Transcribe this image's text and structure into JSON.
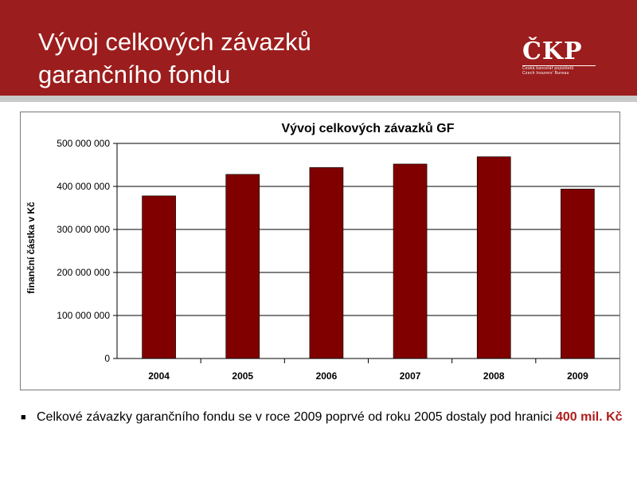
{
  "slide": {
    "title_line1": "Vývoj celkových závazků",
    "title_line2": "garančního fondu"
  },
  "logo": {
    "name": "ČKP",
    "sub_line1": "Česká kancelář pojistitelů",
    "sub_line2": "Czech Insurers' Bureau"
  },
  "bullet": {
    "text_main": "Celkové závazky garančního fondu se v roce 2009 poprvé od roku 2005 dostaly pod hranici ",
    "text_highlight": "400 mil. Kč"
  },
  "colors": {
    "header": "#9c1d1d",
    "bar": "#800000",
    "highlight": "#b01c1c"
  },
  "chart_data": {
    "type": "bar",
    "title": "Vývoj celkových závazků GF",
    "ylabel": "finanční částka v Kč",
    "xlabel": "",
    "categories": [
      "2004",
      "2005",
      "2006",
      "2007",
      "2008",
      "2009"
    ],
    "values": [
      378000000,
      428000000,
      444000000,
      452000000,
      469000000,
      394000000
    ],
    "ylim": [
      0,
      500000000
    ],
    "yticks": [
      0,
      100000000,
      200000000,
      300000000,
      400000000,
      500000000
    ],
    "ytick_labels": [
      "0",
      "100 000 000",
      "200 000 000",
      "300 000 000",
      "400 000 000",
      "500 000 000"
    ],
    "grid": true,
    "legend": "none"
  }
}
